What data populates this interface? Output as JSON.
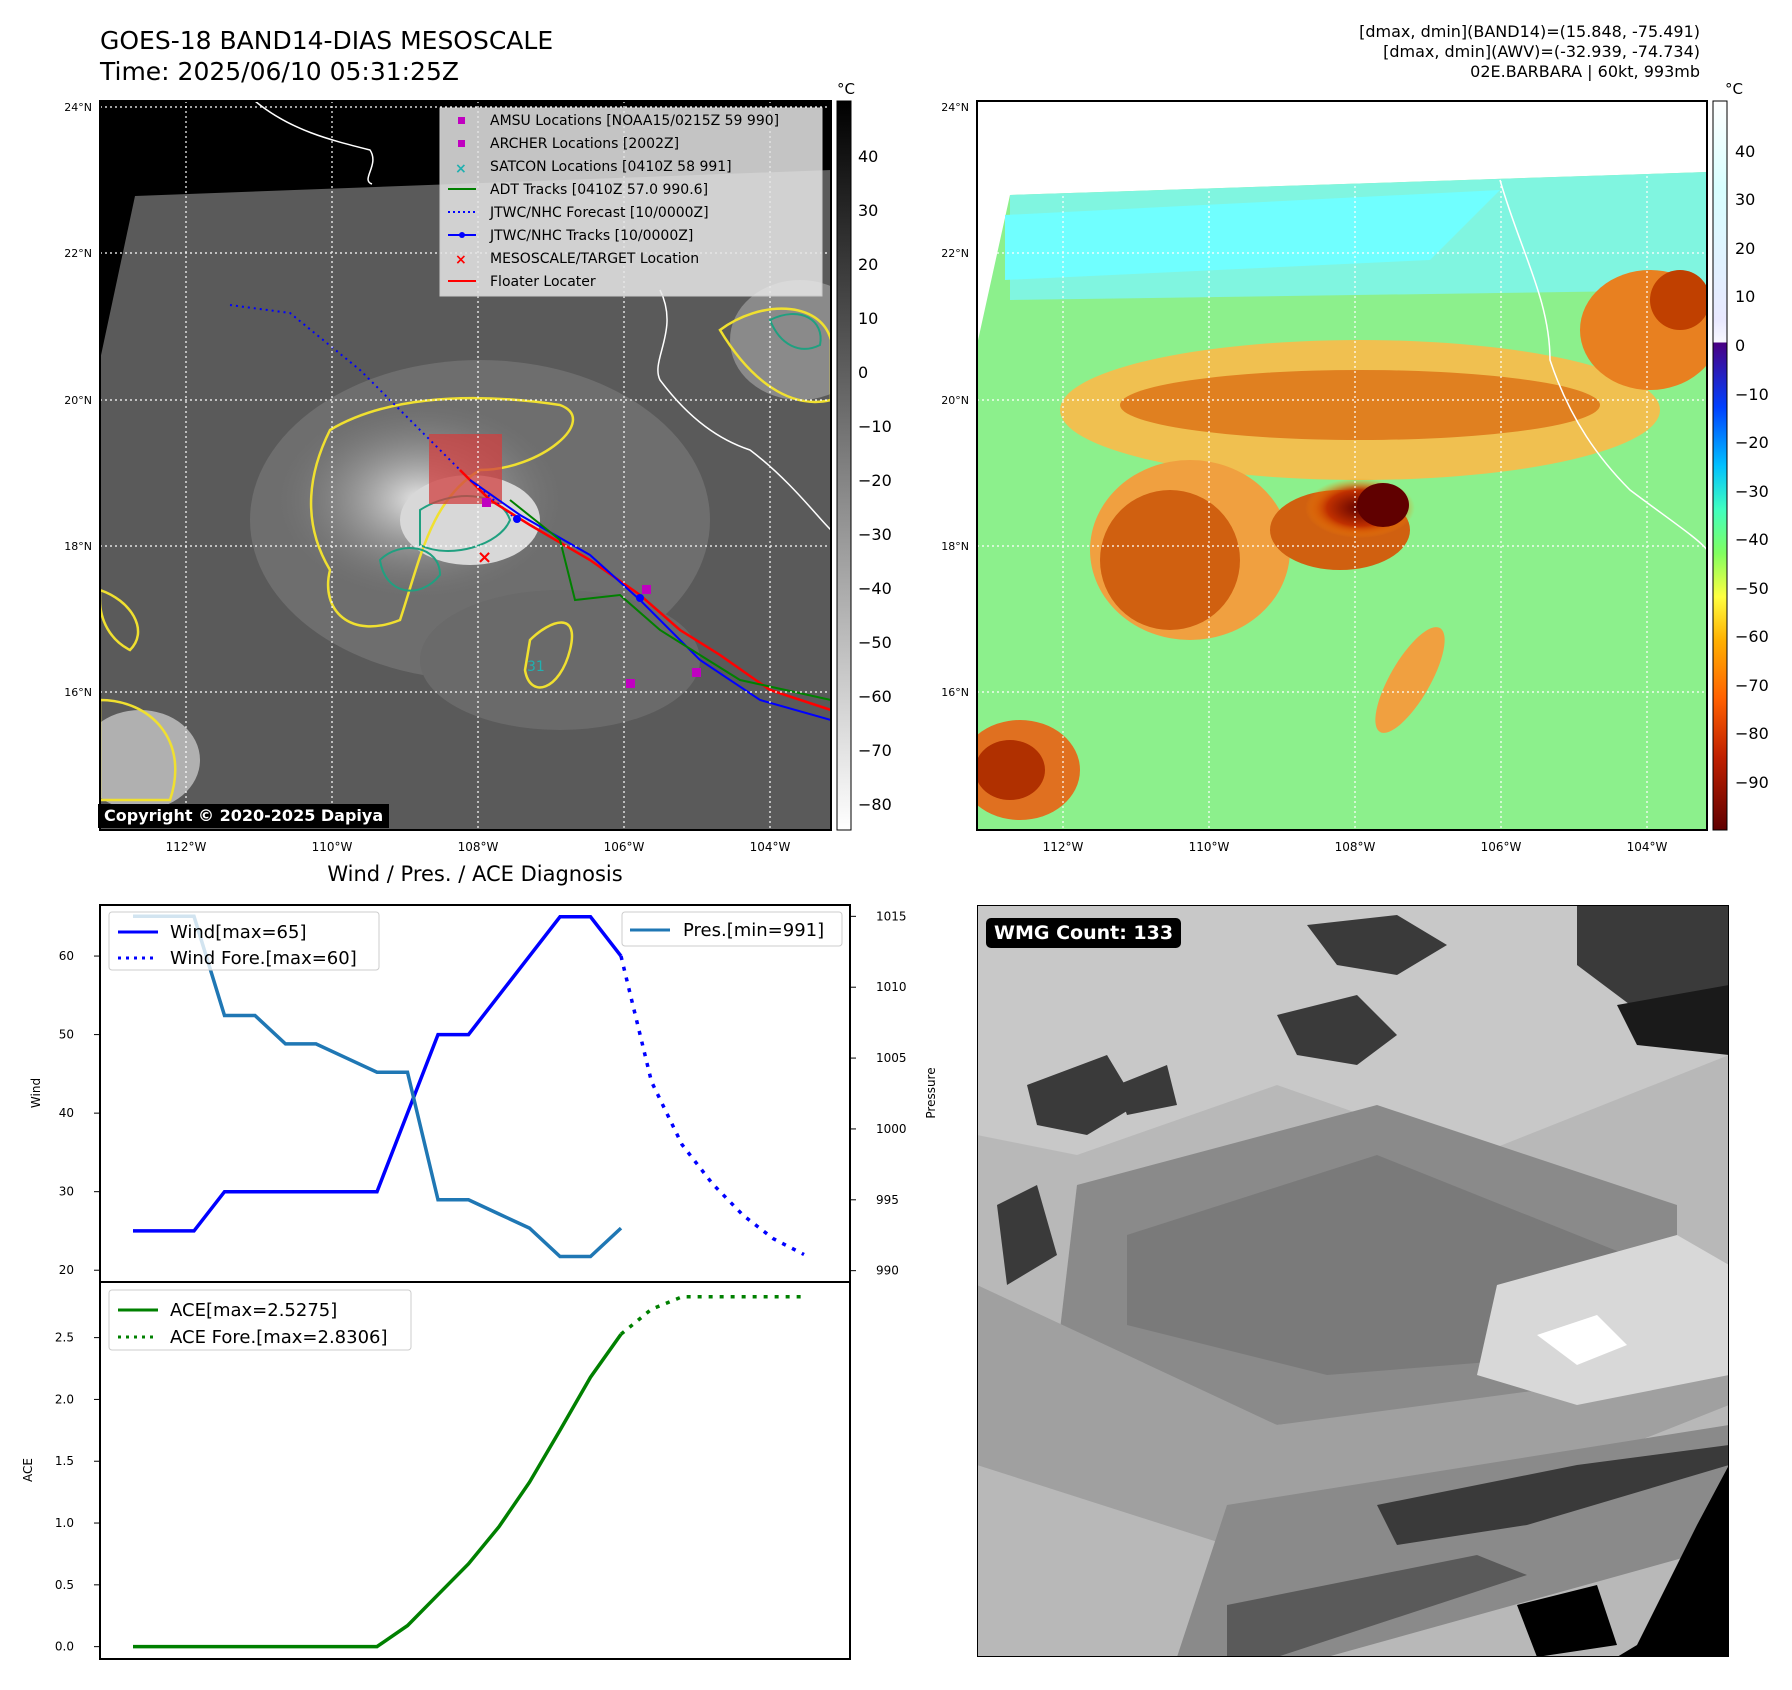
{
  "header": {
    "title": "GOES-18 BAND14-DIAS MESOSCALE",
    "time": "Time: 2025/06/10 05:31:25Z",
    "info_line1": "[dmax, dmin](BAND14)=(15.848, -75.491)",
    "info_line2": "[dmax, dmin](AWV)=(-32.939, -74.734)",
    "info_line3": "02E.BARBARA | 60kt, 993mb"
  },
  "map_axes": {
    "lat_labels": [
      "24°N",
      "22°N",
      "20°N",
      "18°N",
      "16°N"
    ],
    "lon_labels": [
      "112°W",
      "110°W",
      "108°W",
      "106°W",
      "104°W"
    ]
  },
  "ir_panel": {
    "copyright": "Copyright © 2020-2025 Dapiya",
    "colorbar_unit": "°C",
    "colorbar_ticks": [
      "40",
      "30",
      "20",
      "10",
      "0",
      "−10",
      "−20",
      "−30",
      "−40",
      "−50",
      "−60",
      "−70",
      "−80"
    ],
    "legend": [
      {
        "label": "AMSU Locations [NOAA15/0215Z 59 990]",
        "color": "#c000c0",
        "marker": "square"
      },
      {
        "label": "ARCHER Locations [2002Z]",
        "color": "#c000c0",
        "marker": "square"
      },
      {
        "label": "SATCON Locations [0410Z 58 991]",
        "color": "#20b0b0",
        "marker": "x"
      },
      {
        "label": "ADT Tracks [0410Z 57.0 990.6]",
        "color": "#008000",
        "marker": "line"
      },
      {
        "label": "JTWC/NHC Forecast [10/0000Z]",
        "color": "#0000ff",
        "marker": "dotted"
      },
      {
        "label": "JTWC/NHC Tracks [10/0000Z]",
        "color": "#0000ff",
        "marker": "line-dot"
      },
      {
        "label": "MESOSCALE/TARGET Location",
        "color": "#ff0000",
        "marker": "x"
      },
      {
        "label": "Floater Locater",
        "color": "#ff0000",
        "marker": "line"
      }
    ],
    "contour_label": "31"
  },
  "awv_panel": {
    "colorbar_unit": "°C",
    "colorbar_ticks": [
      "40",
      "30",
      "20",
      "10",
      "0",
      "−10",
      "−20",
      "−30",
      "−40",
      "−50",
      "−60",
      "−70",
      "−80",
      "−90"
    ]
  },
  "wmg_panel": {
    "count_label": "WMG Count: 133"
  },
  "chart_data": [
    {
      "type": "line",
      "title": "Wind / Pres. / ACE Diagnosis",
      "ylabel": "Wind",
      "ylabel_right": "Pressure",
      "ylim": [
        18.5,
        66.5
      ],
      "ylim_right": [
        989.2,
        1015.8
      ],
      "yticks": [
        20,
        30,
        40,
        50,
        60
      ],
      "yticks_right": [
        990,
        995,
        1000,
        1005,
        1010,
        1015
      ],
      "legend": [
        "Wind[max=65]",
        "Wind Fore.[max=60]"
      ],
      "legend_right": [
        "Pres.[min=991]"
      ],
      "series": [
        {
          "name": "Wind[max=65]",
          "color": "#0000ff",
          "style": "solid",
          "x": [
            0,
            1,
            2,
            3,
            4,
            5,
            6,
            7,
            8,
            9,
            10,
            11,
            12,
            13,
            14,
            15,
            16,
            17
          ],
          "values": [
            25,
            25,
            25,
            30,
            30,
            30,
            30,
            30,
            30,
            40,
            50,
            50,
            55,
            60,
            65,
            65,
            60,
            null
          ]
        },
        {
          "name": "Wind Fore.[max=60]",
          "color": "#0000ff",
          "style": "dotted",
          "x": [
            16,
            17,
            18,
            19,
            20,
            21,
            22
          ],
          "values": [
            60,
            44,
            36,
            31,
            27,
            24,
            22
          ]
        },
        {
          "name": "Pres.[min=991]",
          "color": "#1f77b4",
          "style": "solid",
          "axis": "right",
          "x": [
            0,
            1,
            2,
            3,
            4,
            5,
            6,
            7,
            8,
            9,
            10,
            11,
            12,
            13,
            14,
            15,
            16
          ],
          "values": [
            1015,
            1015,
            1015,
            1008,
            1008,
            1006,
            1006,
            1005,
            1004,
            1004,
            995,
            995,
            994,
            993,
            991,
            991,
            993
          ]
        }
      ]
    },
    {
      "type": "line",
      "ylabel": "ACE",
      "ylim": [
        -0.1,
        2.95
      ],
      "yticks": [
        0.0,
        0.5,
        1.0,
        1.5,
        2.0,
        2.5
      ],
      "ytick_labels": [
        "0.0",
        "0.5",
        "1.0",
        "1.5",
        "2.0",
        "2.5"
      ],
      "legend": [
        "ACE[max=2.5275]",
        "ACE Fore.[max=2.8306]"
      ],
      "series": [
        {
          "name": "ACE[max=2.5275]",
          "color": "#008000",
          "style": "solid",
          "x": [
            0,
            1,
            2,
            3,
            4,
            5,
            6,
            7,
            8,
            9,
            10,
            11,
            12,
            13,
            14,
            15,
            16
          ],
          "values": [
            0,
            0,
            0,
            0,
            0,
            0,
            0,
            0,
            0,
            0.17,
            0.42,
            0.67,
            0.97,
            1.33,
            1.75,
            2.18,
            2.5275
          ]
        },
        {
          "name": "ACE Fore.[max=2.8306]",
          "color": "#008000",
          "style": "dotted",
          "x": [
            16,
            17,
            18,
            19,
            20,
            21,
            22
          ],
          "values": [
            2.5275,
            2.73,
            2.8306,
            2.8306,
            2.8306,
            2.8306,
            2.8306
          ]
        }
      ]
    }
  ]
}
